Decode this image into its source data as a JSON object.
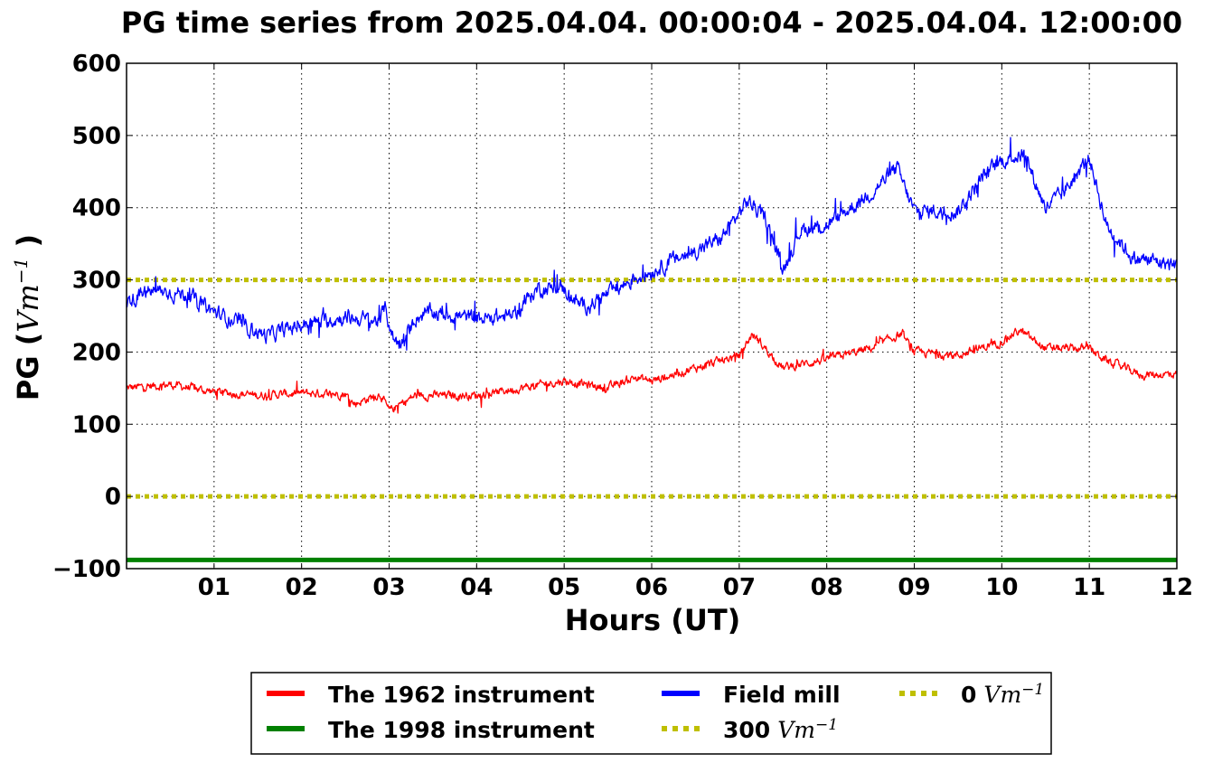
{
  "chart_data": {
    "type": "line",
    "title": "PG time series from 2025.04.04. 00:00:04 - 2025.04.04. 12:00:00",
    "xlabel": "Hours (UT)",
    "ylabel": {
      "text": "PG (",
      "math": "Vm",
      "sup": "−1",
      "close": ")"
    },
    "xlim": [
      0,
      12
    ],
    "ylim": [
      -100,
      600
    ],
    "x_ticks": [
      {
        "value": 1,
        "label": "01"
      },
      {
        "value": 2,
        "label": "02"
      },
      {
        "value": 3,
        "label": "03"
      },
      {
        "value": 4,
        "label": "04"
      },
      {
        "value": 5,
        "label": "05"
      },
      {
        "value": 6,
        "label": "06"
      },
      {
        "value": 7,
        "label": "07"
      },
      {
        "value": 8,
        "label": "08"
      },
      {
        "value": 9,
        "label": "09"
      },
      {
        "value": 10,
        "label": "10"
      },
      {
        "value": 11,
        "label": "11"
      },
      {
        "value": 12,
        "label": "12"
      }
    ],
    "y_ticks": [
      {
        "value": -100,
        "label": "−100"
      },
      {
        "value": 0,
        "label": "0"
      },
      {
        "value": 100,
        "label": "100"
      },
      {
        "value": 200,
        "label": "200"
      },
      {
        "value": 300,
        "label": "300"
      },
      {
        "value": 400,
        "label": "400"
      },
      {
        "value": 500,
        "label": "500"
      },
      {
        "value": 600,
        "label": "600"
      }
    ],
    "grid": true,
    "legend_position": "bottom-center",
    "series": [
      {
        "name": "The 1962 instrument",
        "color": "#ff0000",
        "style": "solid",
        "noise": 9,
        "points": [
          [
            0,
            150
          ],
          [
            0.5,
            155
          ],
          [
            1.0,
            145
          ],
          [
            1.5,
            140
          ],
          [
            2.0,
            143
          ],
          [
            2.5,
            142
          ],
          [
            2.6,
            128
          ],
          [
            2.9,
            142
          ],
          [
            3.0,
            118
          ],
          [
            3.3,
            140
          ],
          [
            4.0,
            140
          ],
          [
            4.5,
            150
          ],
          [
            5.0,
            160
          ],
          [
            5.5,
            150
          ],
          [
            5.8,
            165
          ],
          [
            6.0,
            160
          ],
          [
            6.5,
            178
          ],
          [
            7.0,
            195
          ],
          [
            7.15,
            225
          ],
          [
            7.5,
            178
          ],
          [
            8.0,
            190
          ],
          [
            8.5,
            205
          ],
          [
            8.85,
            225
          ],
          [
            9.0,
            200
          ],
          [
            9.5,
            195
          ],
          [
            10.0,
            215
          ],
          [
            10.2,
            230
          ],
          [
            10.5,
            205
          ],
          [
            11.0,
            205
          ],
          [
            11.2,
            188
          ],
          [
            11.6,
            168
          ],
          [
            12.0,
            170
          ]
        ]
      },
      {
        "name": "The 1998 instrument",
        "color": "#008000",
        "style": "thick",
        "points": [
          [
            0,
            -88
          ],
          [
            12,
            -88
          ]
        ]
      },
      {
        "name": "Field mill",
        "color": "#0000ff",
        "style": "solid",
        "noise": 16,
        "points": [
          [
            0,
            270
          ],
          [
            0.3,
            285
          ],
          [
            0.7,
            280
          ],
          [
            1.0,
            255
          ],
          [
            1.3,
            240
          ],
          [
            1.6,
            222
          ],
          [
            2.0,
            238
          ],
          [
            2.5,
            248
          ],
          [
            2.9,
            243
          ],
          [
            2.95,
            262
          ],
          [
            3.05,
            218
          ],
          [
            3.15,
            210
          ],
          [
            3.3,
            248
          ],
          [
            3.5,
            255
          ],
          [
            4.0,
            246
          ],
          [
            4.4,
            250
          ],
          [
            4.7,
            288
          ],
          [
            5.0,
            288
          ],
          [
            5.2,
            262
          ],
          [
            5.5,
            280
          ],
          [
            5.8,
            302
          ],
          [
            6.0,
            312
          ],
          [
            6.3,
            330
          ],
          [
            6.5,
            340
          ],
          [
            6.8,
            358
          ],
          [
            7.1,
            410
          ],
          [
            7.3,
            385
          ],
          [
            7.5,
            315
          ],
          [
            7.7,
            370
          ],
          [
            8.0,
            375
          ],
          [
            8.5,
            420
          ],
          [
            8.8,
            455
          ],
          [
            9.0,
            395
          ],
          [
            9.5,
            395
          ],
          [
            9.8,
            445
          ],
          [
            10.0,
            465
          ],
          [
            10.25,
            475
          ],
          [
            10.5,
            400
          ],
          [
            10.7,
            420
          ],
          [
            11.0,
            470
          ],
          [
            11.2,
            375
          ],
          [
            11.5,
            330
          ],
          [
            11.8,
            325
          ],
          [
            12.0,
            320
          ]
        ]
      },
      {
        "name": "300",
        "name_math": "Vm",
        "name_sup": "−1",
        "color": "#bfbf00",
        "style": "dotted",
        "points": [
          [
            0,
            300
          ],
          [
            12,
            300
          ]
        ]
      },
      {
        "name": "0",
        "name_math": "Vm",
        "name_sup": "−1",
        "color": "#bfbf00",
        "style": "dotted",
        "points": [
          [
            0,
            0
          ],
          [
            12,
            0
          ]
        ]
      }
    ],
    "legend_order": [
      0,
      1,
      2,
      3,
      4
    ]
  }
}
